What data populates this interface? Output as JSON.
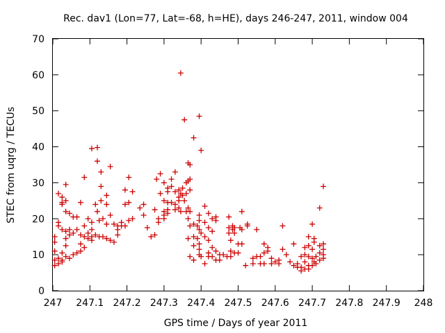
{
  "chart_data": {
    "type": "scatter",
    "title": "Rec. dav1 (Lon=77, Lat=-68, h=HE), days 246-247, 2011, window 004",
    "xlabel": "GPS time / Days of year 2011",
    "ylabel": "STEC from uqrg / TECUs",
    "xlim": [
      247,
      248
    ],
    "ylim": [
      0,
      70
    ],
    "xticks": [
      247,
      247.1,
      247.2,
      247.3,
      247.4,
      247.5,
      247.6,
      247.7,
      247.8,
      247.9,
      248
    ],
    "xtick_labels": [
      "247",
      "247.1",
      "247.2",
      "247.3",
      "247.4",
      "247.5",
      "247.6",
      "247.7",
      "247.8",
      "247.9",
      "248"
    ],
    "yticks": [
      0,
      10,
      20,
      30,
      40,
      50,
      60,
      70
    ],
    "ytick_labels": [
      "0",
      "10",
      "20",
      "30",
      "40",
      "50",
      "60",
      "70"
    ],
    "grid": false,
    "marker": "plus",
    "color": "#cc0000",
    "series": [
      {
        "points": [
          [
            247.005,
            7.0
          ],
          [
            247.005,
            8.5
          ],
          [
            247.005,
            11.0
          ],
          [
            247.005,
            13.5
          ],
          [
            247.005,
            15.0
          ],
          [
            247.015,
            27.0
          ],
          [
            247.015,
            19.0
          ],
          [
            247.015,
            18.0
          ],
          [
            247.015,
            9.0
          ],
          [
            247.015,
            7.5
          ],
          [
            247.025,
            26.0
          ],
          [
            247.025,
            24.5
          ],
          [
            247.025,
            24.0
          ],
          [
            247.025,
            17.0
          ],
          [
            247.025,
            10.5
          ],
          [
            247.025,
            8.5
          ],
          [
            247.025,
            8.0
          ],
          [
            247.035,
            25.0
          ],
          [
            247.035,
            29.5
          ],
          [
            247.035,
            22.0
          ],
          [
            247.035,
            16.5
          ],
          [
            247.035,
            14.5
          ],
          [
            247.035,
            12.5
          ],
          [
            247.035,
            9.5
          ],
          [
            247.045,
            21.5
          ],
          [
            247.045,
            17.0
          ],
          [
            247.045,
            15.5
          ],
          [
            247.045,
            9.0
          ],
          [
            247.055,
            20.5
          ],
          [
            247.055,
            16.0
          ],
          [
            247.055,
            10.0
          ],
          [
            247.065,
            20.5
          ],
          [
            247.065,
            17.0
          ],
          [
            247.065,
            10.5
          ],
          [
            247.075,
            24.5
          ],
          [
            247.075,
            15.5
          ],
          [
            247.075,
            13.0
          ],
          [
            247.075,
            11.0
          ],
          [
            247.085,
            31.5
          ],
          [
            247.085,
            18.0
          ],
          [
            247.085,
            15.0
          ],
          [
            247.085,
            12.0
          ],
          [
            247.095,
            20.0
          ],
          [
            247.095,
            16.0
          ],
          [
            247.095,
            14.5
          ],
          [
            247.105,
            39.5
          ],
          [
            247.105,
            19.0
          ],
          [
            247.105,
            17.0
          ],
          [
            247.105,
            15.0
          ],
          [
            247.105,
            14.0
          ],
          [
            247.115,
            24.0
          ],
          [
            247.115,
            15.5
          ],
          [
            247.12,
            39.8
          ],
          [
            247.12,
            36.0
          ],
          [
            247.12,
            22.0
          ],
          [
            247.125,
            19.5
          ],
          [
            247.125,
            15.0
          ],
          [
            247.13,
            33.0
          ],
          [
            247.13,
            29.0
          ],
          [
            247.13,
            25.0
          ],
          [
            247.135,
            20.0
          ],
          [
            247.135,
            15.0
          ],
          [
            247.145,
            26.5
          ],
          [
            247.145,
            24.0
          ],
          [
            247.145,
            18.5
          ],
          [
            247.145,
            14.5
          ],
          [
            247.155,
            34.5
          ],
          [
            247.155,
            21.0
          ],
          [
            247.155,
            14.0
          ],
          [
            247.165,
            18.5
          ],
          [
            247.165,
            13.5
          ],
          [
            247.175,
            18.0
          ],
          [
            247.175,
            17.0
          ],
          [
            247.175,
            15.5
          ],
          [
            247.185,
            19.0
          ],
          [
            247.185,
            18.0
          ],
          [
            247.195,
            28.0
          ],
          [
            247.195,
            24.0
          ],
          [
            247.195,
            18.0
          ],
          [
            247.205,
            31.5
          ],
          [
            247.205,
            24.5
          ],
          [
            247.205,
            19.5
          ],
          [
            247.215,
            27.5
          ],
          [
            247.215,
            20.0
          ],
          [
            247.235,
            23.0
          ],
          [
            247.245,
            24.0
          ],
          [
            247.245,
            21.0
          ],
          [
            247.255,
            17.5
          ],
          [
            247.265,
            15.0
          ],
          [
            247.275,
            15.5
          ],
          [
            247.275,
            22.5
          ],
          [
            247.28,
            31.0
          ],
          [
            247.285,
            20.0
          ],
          [
            247.285,
            19.0
          ],
          [
            247.29,
            32.5
          ],
          [
            247.29,
            27.0
          ],
          [
            247.3,
            30.0
          ],
          [
            247.3,
            25.0
          ],
          [
            247.3,
            22.0
          ],
          [
            247.3,
            21.0
          ],
          [
            247.3,
            20.0
          ],
          [
            247.31,
            28.5
          ],
          [
            247.31,
            27.5
          ],
          [
            247.31,
            24.5
          ],
          [
            247.31,
            22.5
          ],
          [
            247.31,
            21.5
          ],
          [
            247.32,
            31.0
          ],
          [
            247.32,
            29.0
          ],
          [
            247.32,
            24.5
          ],
          [
            247.33,
            33.0
          ],
          [
            247.33,
            27.5
          ],
          [
            247.33,
            24.0
          ],
          [
            247.33,
            22.5
          ],
          [
            247.34,
            28.0
          ],
          [
            247.34,
            26.0
          ],
          [
            247.34,
            25.0
          ],
          [
            247.34,
            23.0
          ],
          [
            247.345,
            60.5
          ],
          [
            247.345,
            27.0
          ],
          [
            247.345,
            22.0
          ],
          [
            247.35,
            28.5
          ],
          [
            247.35,
            26.5
          ],
          [
            247.355,
            47.5
          ],
          [
            247.355,
            25.0
          ],
          [
            247.36,
            30.0
          ],
          [
            247.36,
            27.0
          ],
          [
            247.36,
            22.0
          ],
          [
            247.365,
            35.5
          ],
          [
            247.365,
            30.5
          ],
          [
            247.365,
            23.0
          ],
          [
            247.365,
            20.0
          ],
          [
            247.365,
            14.5
          ],
          [
            247.37,
            35.0
          ],
          [
            247.37,
            31.0
          ],
          [
            247.37,
            28.0
          ],
          [
            247.37,
            22.0
          ],
          [
            247.37,
            18.0
          ],
          [
            247.37,
            9.5
          ],
          [
            247.38,
            42.5
          ],
          [
            247.38,
            18.5
          ],
          [
            247.38,
            15.0
          ],
          [
            247.38,
            12.5
          ],
          [
            247.38,
            8.5
          ],
          [
            247.39,
            18.0
          ],
          [
            247.39,
            14.5
          ],
          [
            247.395,
            48.5
          ],
          [
            247.395,
            21.0
          ],
          [
            247.395,
            19.5
          ],
          [
            247.395,
            17.0
          ],
          [
            247.395,
            13.0
          ],
          [
            247.395,
            11.5
          ],
          [
            247.395,
            10.0
          ],
          [
            247.4,
            39.0
          ],
          [
            247.4,
            16.0
          ],
          [
            247.4,
            9.5
          ],
          [
            247.41,
            23.5
          ],
          [
            247.41,
            19.0
          ],
          [
            247.41,
            15.0
          ],
          [
            247.41,
            7.5
          ],
          [
            247.42,
            21.5
          ],
          [
            247.42,
            17.5
          ],
          [
            247.42,
            14.0
          ],
          [
            247.42,
            10.5
          ],
          [
            247.42,
            9.5
          ],
          [
            247.43,
            20.0
          ],
          [
            247.43,
            16.5
          ],
          [
            247.43,
            12.0
          ],
          [
            247.43,
            9.5
          ],
          [
            247.44,
            20.5
          ],
          [
            247.44,
            19.5
          ],
          [
            247.44,
            11.0
          ],
          [
            247.44,
            8.5
          ],
          [
            247.45,
            10.0
          ],
          [
            247.45,
            8.5
          ],
          [
            247.46,
            10.0
          ],
          [
            247.47,
            9.5
          ],
          [
            247.475,
            20.5
          ],
          [
            247.475,
            17.5
          ],
          [
            247.475,
            16.0
          ],
          [
            247.48,
            14.0
          ],
          [
            247.48,
            11.0
          ],
          [
            247.48,
            9.5
          ],
          [
            247.485,
            18.0
          ],
          [
            247.485,
            17.0
          ],
          [
            247.49,
            17.5
          ],
          [
            247.49,
            16.0
          ],
          [
            247.49,
            10.5
          ],
          [
            247.5,
            13.0
          ],
          [
            247.5,
            10.5
          ],
          [
            247.505,
            17.5
          ],
          [
            247.51,
            22.0
          ],
          [
            247.51,
            17.0
          ],
          [
            247.51,
            13.0
          ],
          [
            247.52,
            7.0
          ],
          [
            247.525,
            18.5
          ],
          [
            247.525,
            18.0
          ],
          [
            247.54,
            7.5
          ],
          [
            247.54,
            9.0
          ],
          [
            247.55,
            17.0
          ],
          [
            247.55,
            9.5
          ],
          [
            247.56,
            9.5
          ],
          [
            247.56,
            7.5
          ],
          [
            247.57,
            13.0
          ],
          [
            247.57,
            10.5
          ],
          [
            247.57,
            7.5
          ],
          [
            247.58,
            12.0
          ],
          [
            247.58,
            11.0
          ],
          [
            247.59,
            9.0
          ],
          [
            247.59,
            7.5
          ],
          [
            247.6,
            8.0
          ],
          [
            247.61,
            7.5
          ],
          [
            247.61,
            8.5
          ],
          [
            247.62,
            18.0
          ],
          [
            247.62,
            11.5
          ],
          [
            247.63,
            10.0
          ],
          [
            247.64,
            8.0
          ],
          [
            247.65,
            13.0
          ],
          [
            247.65,
            7.0
          ],
          [
            247.66,
            6.5
          ],
          [
            247.66,
            7.5
          ],
          [
            247.67,
            9.5
          ],
          [
            247.67,
            6.5
          ],
          [
            247.67,
            5.5
          ],
          [
            247.68,
            12.0
          ],
          [
            247.68,
            10.0
          ],
          [
            247.68,
            8.0
          ],
          [
            247.68,
            6.0
          ],
          [
            247.69,
            15.0
          ],
          [
            247.69,
            12.5
          ],
          [
            247.69,
            9.5
          ],
          [
            247.69,
            7.0
          ],
          [
            247.69,
            6.0
          ],
          [
            247.7,
            18.5
          ],
          [
            247.7,
            11.5
          ],
          [
            247.7,
            9.0
          ],
          [
            247.7,
            7.0
          ],
          [
            247.705,
            14.5
          ],
          [
            247.705,
            13.5
          ],
          [
            247.705,
            8.0
          ],
          [
            247.71,
            9.5
          ],
          [
            247.71,
            7.5
          ],
          [
            247.72,
            23.0
          ],
          [
            247.72,
            12.5
          ],
          [
            247.72,
            10.5
          ],
          [
            247.72,
            8.5
          ],
          [
            247.73,
            29.0
          ],
          [
            247.73,
            13.0
          ],
          [
            247.73,
            11.5
          ],
          [
            247.73,
            10.0
          ],
          [
            247.73,
            9.0
          ]
        ]
      }
    ]
  }
}
